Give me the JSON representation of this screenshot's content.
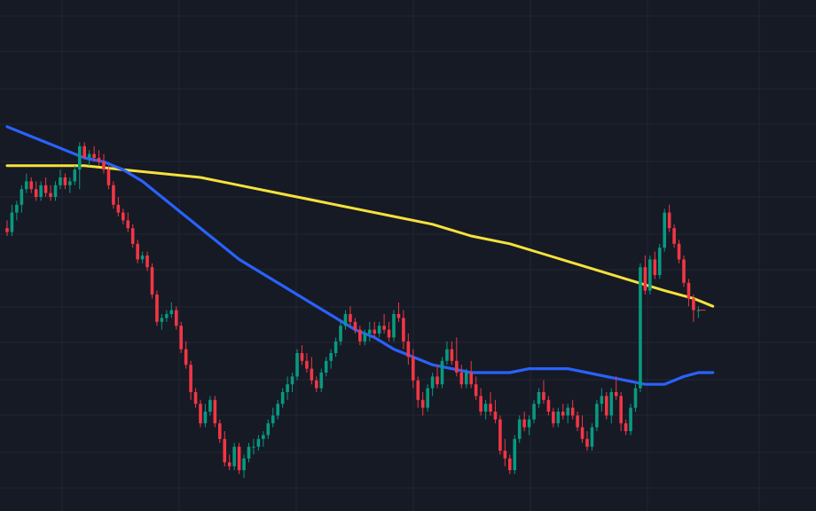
{
  "chart_data": {
    "type": "candlestick",
    "title": "",
    "xlabel": "",
    "ylabel": "",
    "grid": true,
    "legend": "none",
    "colors": {
      "background": "#161a25",
      "grid": "#222633",
      "up": "#089981",
      "down": "#f23645",
      "ma_fast": "#2962ff",
      "ma_slow": "#f5e13c"
    },
    "ylim": [
      0,
      100
    ],
    "series": [
      {
        "type": "candlestick",
        "candles": [
          [
            62,
            64,
            60,
            61
          ],
          [
            61,
            68,
            60,
            66
          ],
          [
            66,
            69,
            64,
            68
          ],
          [
            68,
            73,
            66,
            72
          ],
          [
            72,
            76,
            71,
            74
          ],
          [
            74,
            75,
            71,
            72
          ],
          [
            72,
            74,
            69,
            70
          ],
          [
            70,
            74,
            69,
            73
          ],
          [
            73,
            75,
            70,
            71
          ],
          [
            71,
            73,
            69,
            70
          ],
          [
            70,
            74,
            69,
            73
          ],
          [
            73,
            77,
            72,
            75
          ],
          [
            75,
            76,
            72,
            73
          ],
          [
            73,
            75,
            71,
            74
          ],
          [
            74,
            78,
            73,
            77
          ],
          [
            77,
            84,
            72,
            83
          ],
          [
            83,
            84,
            80,
            80
          ],
          [
            80,
            82,
            78,
            81
          ],
          [
            81,
            83,
            79,
            80
          ],
          [
            80,
            82,
            78,
            79
          ],
          [
            79,
            81,
            76,
            77
          ],
          [
            77,
            78,
            72,
            73
          ],
          [
            73,
            74,
            67,
            68
          ],
          [
            68,
            70,
            65,
            66
          ],
          [
            66,
            67,
            63,
            64
          ],
          [
            64,
            66,
            61,
            62
          ],
          [
            62,
            63,
            57,
            58
          ],
          [
            58,
            59,
            53,
            54
          ],
          [
            54,
            56,
            53,
            55
          ],
          [
            55,
            56,
            51,
            52
          ],
          [
            52,
            53,
            44,
            45
          ],
          [
            45,
            46,
            37,
            38
          ],
          [
            38,
            40,
            36,
            39
          ],
          [
            39,
            41,
            38,
            40
          ],
          [
            40,
            43,
            39,
            41
          ],
          [
            41,
            42,
            36,
            37
          ],
          [
            37,
            38,
            30,
            31
          ],
          [
            31,
            33,
            26,
            27
          ],
          [
            27,
            28,
            18,
            20
          ],
          [
            20,
            21,
            16,
            17
          ],
          [
            17,
            18,
            11,
            12
          ],
          [
            12,
            17,
            11,
            15
          ],
          [
            15,
            19,
            14,
            18
          ],
          [
            18,
            19,
            11,
            12
          ],
          [
            12,
            13,
            7,
            8
          ],
          [
            8,
            10,
            1,
            2
          ],
          [
            2,
            4,
            0,
            1
          ],
          [
            1,
            7,
            0,
            6
          ],
          [
            6,
            7,
            -1,
            0
          ],
          [
            0,
            4,
            -2,
            3
          ],
          [
            3,
            7,
            2,
            6
          ],
          [
            6,
            8,
            4,
            6
          ],
          [
            6,
            9,
            5,
            8
          ],
          [
            8,
            10,
            6,
            9
          ],
          [
            9,
            13,
            8,
            12
          ],
          [
            12,
            16,
            11,
            14
          ],
          [
            14,
            18,
            13,
            17
          ],
          [
            17,
            21,
            16,
            20
          ],
          [
            20,
            24,
            18,
            22
          ],
          [
            22,
            25,
            20,
            24
          ],
          [
            24,
            31,
            23,
            30
          ],
          [
            30,
            32,
            27,
            28
          ],
          [
            28,
            30,
            25,
            26
          ],
          [
            26,
            29,
            22,
            23
          ],
          [
            23,
            24,
            20,
            21
          ],
          [
            21,
            26,
            20,
            25
          ],
          [
            25,
            29,
            24,
            28
          ],
          [
            28,
            31,
            26,
            30
          ],
          [
            30,
            34,
            29,
            33
          ],
          [
            33,
            38,
            32,
            37
          ],
          [
            37,
            41,
            36,
            40
          ],
          [
            40,
            42,
            37,
            38
          ],
          [
            38,
            39,
            35,
            36
          ],
          [
            36,
            37,
            32,
            33
          ],
          [
            33,
            36,
            32,
            35
          ],
          [
            35,
            38,
            33,
            36
          ],
          [
            36,
            38,
            34,
            35
          ],
          [
            35,
            38,
            34,
            37
          ],
          [
            37,
            40,
            35,
            36
          ],
          [
            36,
            38,
            33,
            34
          ],
          [
            34,
            41,
            33,
            40
          ],
          [
            40,
            43,
            38,
            39
          ],
          [
            39,
            41,
            31,
            33
          ],
          [
            33,
            35,
            27,
            29
          ],
          [
            29,
            31,
            21,
            23
          ],
          [
            23,
            24,
            16,
            18
          ],
          [
            18,
            20,
            14,
            16
          ],
          [
            16,
            22,
            15,
            21
          ],
          [
            21,
            25,
            19,
            24
          ],
          [
            24,
            27,
            21,
            22
          ],
          [
            22,
            29,
            21,
            28
          ],
          [
            28,
            33,
            27,
            31
          ],
          [
            31,
            33,
            27,
            28
          ],
          [
            28,
            34,
            24,
            25
          ],
          [
            25,
            27,
            21,
            22
          ],
          [
            22,
            26,
            21,
            25
          ],
          [
            25,
            28,
            21,
            22
          ],
          [
            22,
            24,
            18,
            19
          ],
          [
            19,
            21,
            14,
            15
          ],
          [
            15,
            18,
            13,
            17
          ],
          [
            17,
            20,
            14,
            15
          ],
          [
            15,
            18,
            12,
            13
          ],
          [
            13,
            14,
            4,
            5
          ],
          [
            5,
            8,
            1,
            3
          ],
          [
            3,
            4,
            -1,
            0
          ],
          [
            0,
            9,
            -1,
            8
          ],
          [
            8,
            14,
            7,
            13
          ],
          [
            13,
            15,
            10,
            11
          ],
          [
            11,
            14,
            9,
            13
          ],
          [
            13,
            18,
            12,
            17
          ],
          [
            17,
            21,
            16,
            20
          ],
          [
            20,
            23,
            17,
            18
          ],
          [
            18,
            19,
            14,
            15
          ],
          [
            15,
            16,
            11,
            12
          ],
          [
            12,
            16,
            11,
            15
          ],
          [
            15,
            17,
            13,
            14
          ],
          [
            14,
            17,
            12,
            16
          ],
          [
            16,
            18,
            13,
            14
          ],
          [
            14,
            15,
            10,
            11
          ],
          [
            11,
            14,
            7,
            8
          ],
          [
            8,
            10,
            5,
            6
          ],
          [
            6,
            12,
            5,
            11
          ],
          [
            11,
            18,
            10,
            17
          ],
          [
            17,
            21,
            15,
            19
          ],
          [
            19,
            20,
            13,
            14
          ],
          [
            14,
            21,
            12,
            20
          ],
          [
            20,
            24,
            18,
            19
          ],
          [
            19,
            20,
            10,
            12
          ],
          [
            12,
            13,
            9,
            10
          ],
          [
            10,
            17,
            9,
            16
          ],
          [
            16,
            22,
            15,
            21
          ],
          [
            21,
            53,
            20,
            52
          ],
          [
            52,
            55,
            45,
            46
          ],
          [
            46,
            55,
            45,
            54
          ],
          [
            54,
            56,
            49,
            50
          ],
          [
            50,
            58,
            49,
            57
          ],
          [
            57,
            67,
            56,
            66
          ],
          [
            66,
            68,
            61,
            62
          ],
          [
            62,
            63,
            57,
            58
          ],
          [
            58,
            59,
            53,
            54
          ],
          [
            54,
            55,
            47,
            48
          ],
          [
            48,
            49,
            42,
            44
          ],
          [
            44,
            45,
            38,
            41
          ],
          [
            41,
            42,
            39,
            41
          ]
        ]
      },
      {
        "name": "",
        "type": "line",
        "role": "ma_fast",
        "values": [
          [
            0,
            88
          ],
          [
            4,
            86
          ],
          [
            8,
            84
          ],
          [
            12,
            82
          ],
          [
            16,
            80
          ],
          [
            20,
            79
          ],
          [
            24,
            77
          ],
          [
            28,
            74
          ],
          [
            32,
            70
          ],
          [
            36,
            66
          ],
          [
            40,
            62
          ],
          [
            44,
            58
          ],
          [
            48,
            54
          ],
          [
            52,
            51
          ],
          [
            56,
            48
          ],
          [
            60,
            45
          ],
          [
            64,
            42
          ],
          [
            68,
            39
          ],
          [
            72,
            36
          ],
          [
            76,
            34
          ],
          [
            80,
            31
          ],
          [
            84,
            29
          ],
          [
            88,
            27
          ],
          [
            92,
            26
          ],
          [
            96,
            25
          ],
          [
            100,
            25
          ],
          [
            104,
            25
          ],
          [
            108,
            26
          ],
          [
            112,
            26
          ],
          [
            116,
            26
          ],
          [
            120,
            25
          ],
          [
            124,
            24
          ],
          [
            128,
            23
          ],
          [
            132,
            22
          ],
          [
            136,
            22
          ],
          [
            140,
            24
          ],
          [
            143,
            25
          ],
          [
            146,
            25
          ]
        ]
      },
      {
        "name": "",
        "type": "line",
        "role": "ma_slow",
        "values": [
          [
            0,
            78
          ],
          [
            8,
            78
          ],
          [
            16,
            78
          ],
          [
            24,
            77
          ],
          [
            32,
            76
          ],
          [
            40,
            75
          ],
          [
            48,
            73
          ],
          [
            56,
            71
          ],
          [
            64,
            69
          ],
          [
            72,
            67
          ],
          [
            80,
            65
          ],
          [
            88,
            63
          ],
          [
            96,
            60
          ],
          [
            104,
            58
          ],
          [
            112,
            55
          ],
          [
            120,
            52
          ],
          [
            128,
            49
          ],
          [
            136,
            46
          ],
          [
            142,
            44
          ],
          [
            146,
            42
          ]
        ]
      }
    ]
  }
}
